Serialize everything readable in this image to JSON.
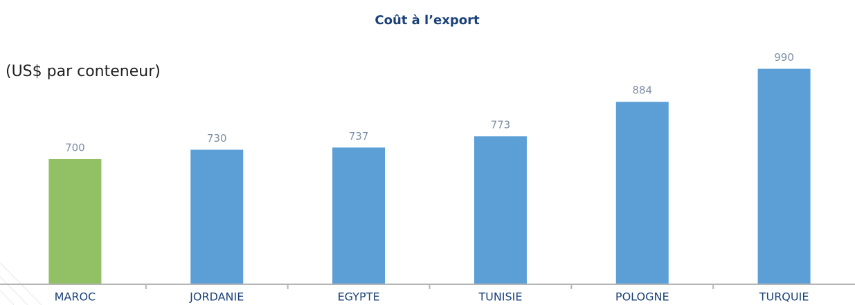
{
  "chart_data": {
    "type": "bar",
    "title": "Coût à l’export",
    "subtitle": "(US$ par conteneur)",
    "categories": [
      "MAROC",
      "JORDANIE",
      "EGYPTE",
      "TUNISIE",
      "POLOGNE",
      "TURQUIE"
    ],
    "values": [
      700,
      730,
      737,
      773,
      884,
      990
    ],
    "colors": [
      "#92c064",
      "#5b9fd6",
      "#5b9fd6",
      "#5b9fd6",
      "#5b9fd6",
      "#5b9fd6"
    ],
    "ylim": [
      300,
      1000
    ]
  }
}
